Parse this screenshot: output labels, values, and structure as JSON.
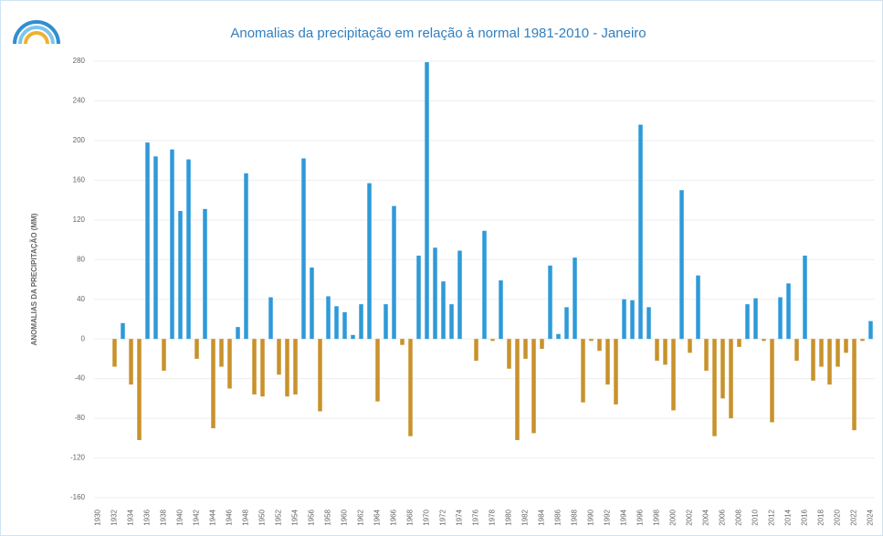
{
  "chart_data": {
    "type": "bar",
    "title": "Anomalias da precipitação em relação à normal 1981-2010 - Janeiro",
    "y_label": "ANOMALIAS DA PRECIPITAÇÃO (MM)",
    "categories": [
      "1930",
      null,
      "1932",
      null,
      "1934",
      null,
      "1936",
      null,
      "1938",
      null,
      "1940",
      null,
      "1942",
      null,
      "1944",
      null,
      "1946",
      null,
      "1948",
      null,
      "1950",
      null,
      "1952",
      null,
      "1954",
      null,
      "1956",
      null,
      "1958",
      null,
      "1960",
      null,
      "1962",
      null,
      "1964",
      null,
      "1966",
      null,
      "1968",
      null,
      "1970",
      null,
      "1972",
      null,
      "1974",
      null,
      "1976",
      null,
      "1978",
      null,
      "1980",
      null,
      "1982",
      null,
      "1984",
      null,
      "1986",
      null,
      "1988",
      null,
      "1990",
      null,
      "1992",
      null,
      "1994",
      null,
      "1996",
      null,
      "1998",
      null,
      "2000",
      null,
      "2002",
      null,
      "2004",
      null,
      "2006",
      null,
      "2008",
      null,
      "2010",
      null,
      "2012",
      null,
      "2014",
      null,
      "2016",
      null,
      "2018",
      null,
      "2020",
      null,
      "2022",
      null,
      "2024"
    ],
    "values": [
      null,
      null,
      -28,
      16,
      -46,
      -102,
      198,
      184,
      -32,
      191,
      129,
      181,
      -20,
      131,
      -90,
      -28,
      -50,
      12,
      167,
      -56,
      -58,
      42,
      -36,
      -58,
      -56,
      182,
      72,
      -73,
      43,
      33,
      27,
      4,
      35,
      157,
      -63,
      35,
      134,
      -6,
      -98,
      84,
      279,
      92,
      58,
      35,
      89,
      null,
      -22,
      109,
      -2,
      59,
      -30,
      -102,
      -20,
      -95,
      -10,
      74,
      5,
      32,
      82,
      -64,
      -2,
      -12,
      -46,
      -66,
      40,
      39,
      216,
      32,
      -22,
      -26,
      -72,
      150,
      -14,
      64,
      -32,
      -98,
      -60,
      -80,
      -8,
      35,
      41,
      -2,
      -84,
      42,
      56,
      -22,
      84,
      -42,
      -28,
      -46,
      -28,
      -14,
      -92,
      -2,
      18
    ],
    "color": "#2f9ad8",
    "negative_color": "#c8922c",
    "ylim": [
      -160,
      280
    ],
    "yticks": [
      -160,
      -120,
      -80,
      -40,
      0,
      40,
      80,
      120,
      160,
      200,
      240,
      280
    ],
    "grid": true
  }
}
